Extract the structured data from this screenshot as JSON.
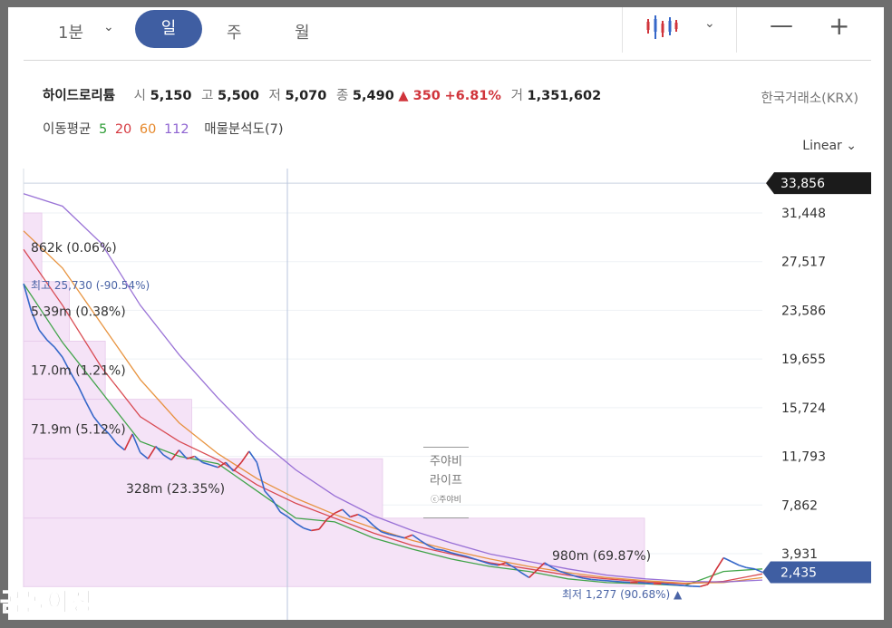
{
  "toolbar": {
    "interval": "1분",
    "periods": [
      "일",
      "주",
      "월"
    ],
    "active_period": "일",
    "chart_type_icon": "candlestick-icon",
    "zoom_out_glyph": "—",
    "zoom_in_glyph": "+"
  },
  "info": {
    "name": "하이드로리튬",
    "open_label": "시",
    "open": "5,150",
    "high_label": "고",
    "high": "5,500",
    "low_label": "저",
    "low": "5,070",
    "close_label": "종",
    "close": "5,490",
    "change": "▲ 350",
    "change_pct": "+6.81%",
    "volume_label": "거",
    "volume": "1,351,602",
    "exchange": "한국거래소(KRX)"
  },
  "indicators": {
    "ma_label": "이동평균",
    "ma_periods": [
      "5",
      "20",
      "60",
      "112"
    ],
    "volume_profile_label": "매물분석도(7)"
  },
  "scale": {
    "type_label": "Linear",
    "type_chevron": "⌄"
  },
  "watermarks": {
    "center_line1": "주야비",
    "center_line2": "라이프",
    "center_line3": "ⓒ주야비",
    "corner": "곰돌이정"
  },
  "colors": {
    "accent": "#3f5ea2",
    "up": "#d0343b",
    "down": "#3567c9",
    "ma5": "#2e9c36",
    "ma20": "#d5383f",
    "ma60": "#e6882b",
    "ma112": "#8e63d1",
    "volume_profile_fill": "#f5e3f7"
  },
  "chart_data": {
    "type": "line",
    "title": "",
    "ylim": [
      1277,
      33856
    ],
    "y_ticks": [
      "31,448",
      "27,517",
      "23,586",
      "19,655",
      "15,724",
      "11,793",
      "7,862",
      "3,931"
    ],
    "y_tick_values": [
      31448,
      27517,
      23586,
      19655,
      15724,
      11793,
      7862,
      3931
    ],
    "max_marker": {
      "label": "33,856",
      "value": 33856
    },
    "current_marker": {
      "label": "2,435",
      "value": 2435
    },
    "high_annotation": {
      "label": "최고 25,730 (-90.54%)",
      "value": 25730
    },
    "low_annotation": {
      "label": "최저 1,277 (90.68%) ▲",
      "value": 1277
    },
    "close_series": [
      25730,
      23500,
      22000,
      21200,
      20600,
      19800,
      18600,
      17500,
      16200,
      15000,
      14200,
      13600,
      12800,
      12300,
      13600,
      12100,
      11600,
      12600,
      11900,
      11500,
      12300,
      11600,
      11800,
      11300,
      11100,
      10900,
      11300,
      10600,
      11300,
      12200,
      11300,
      9000,
      8300,
      7300,
      6900,
      6400,
      6000,
      5800,
      5900,
      6700,
      7200,
      7500,
      6900,
      7100,
      6800,
      6200,
      5700,
      5500,
      5350,
      5200,
      5450,
      5000,
      4600,
      4300,
      4200,
      4000,
      3850,
      3700,
      3500,
      3300,
      3100,
      3000,
      3200,
      2850,
      2400,
      2000,
      2600,
      3200,
      2800,
      2500,
      2300,
      2100,
      1950,
      1850,
      1800,
      1750,
      1700,
      1650,
      1600,
      1600,
      1550,
      1500,
      1500,
      1450,
      1400,
      1350,
      1300,
      1277,
      1450,
      2600,
      3600,
      3300,
      3000,
      2800,
      2700,
      2435
    ],
    "ma_series": [
      {
        "name": "5",
        "values": [
          25730,
          21000,
          17000,
          13000,
          11800,
          11200,
          9000,
          6800,
          6500,
          5200,
          4300,
          3500,
          2900,
          2500,
          1900,
          1600,
          1500,
          1350,
          2500,
          2700
        ]
      },
      {
        "name": "20",
        "values": [
          28500,
          24000,
          19000,
          15000,
          13000,
          11500,
          9500,
          8000,
          6800,
          5600,
          4600,
          3900,
          3200,
          2700,
          2200,
          1900,
          1650,
          1500,
          1700,
          2300
        ]
      },
      {
        "name": "60",
        "values": [
          30000,
          27000,
          22500,
          18000,
          14500,
          12000,
          10000,
          8400,
          7100,
          6000,
          5000,
          4200,
          3500,
          2900,
          2400,
          2000,
          1750,
          1550,
          1600,
          2000
        ]
      },
      {
        "name": "112",
        "values": [
          33000,
          32000,
          29000,
          24000,
          20000,
          16500,
          13300,
          10700,
          8600,
          7000,
          5800,
          4800,
          3900,
          3300,
          2700,
          2200,
          1900,
          1700,
          1650,
          1800
        ]
      }
    ],
    "volume_profile": [
      {
        "label": "862k (0.06%)",
        "low": 25900,
        "high": 31448,
        "share": 0.0006
      },
      {
        "label": "5.39m (0.38%)",
        "low": 21100,
        "high": 25900,
        "share": 0.0038
      },
      {
        "label": "17.0m (1.21%)",
        "low": 16400,
        "high": 21100,
        "share": 0.0121
      },
      {
        "label": "71.9m (5.12%)",
        "low": 11600,
        "high": 16400,
        "share": 0.0512
      },
      {
        "label": "328m (23.35%)",
        "low": 6800,
        "high": 11600,
        "share": 0.2335
      },
      {
        "label": "980m (69.87%)",
        "low": 1277,
        "high": 6800,
        "share": 0.6987
      }
    ]
  }
}
